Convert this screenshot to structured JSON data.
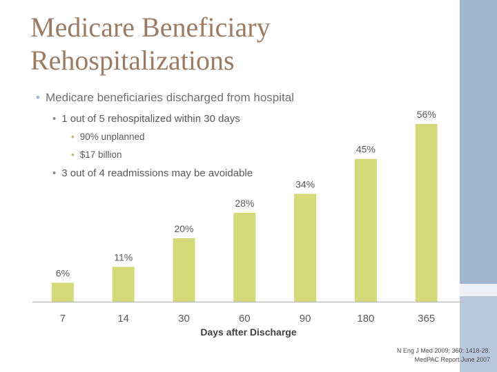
{
  "title": "Medicare Beneficiary Rehospitalizations",
  "bullets": {
    "level1": "Medicare beneficiaries discharged from hospital",
    "level2a": "1 out of 5 rehospitalized within 30 days",
    "level3a": "90% unplanned",
    "level3b": "$17 billion",
    "level2b": "3 out of 4 readmissions may be avoidable"
  },
  "source": {
    "line1": "N Eng J Med 2009; 360: 1418-28.",
    "line2": "MedPAC Report June 2007"
  },
  "colors": {
    "bar": "#d4d97a",
    "axis": "#bfbfbf",
    "title": "#9b7b63"
  },
  "chart_data": {
    "type": "bar",
    "categories": [
      "7",
      "14",
      "30",
      "60",
      "90",
      "180",
      "365"
    ],
    "values": [
      6,
      11,
      20,
      28,
      34,
      45,
      56
    ],
    "data_labels": [
      "6%",
      "11%",
      "20%",
      "28%",
      "34%",
      "45%",
      "56%"
    ],
    "title": "",
    "xlabel": "Days after Discharge",
    "ylabel": "",
    "ylim": [
      0,
      56
    ],
    "grid": false
  }
}
